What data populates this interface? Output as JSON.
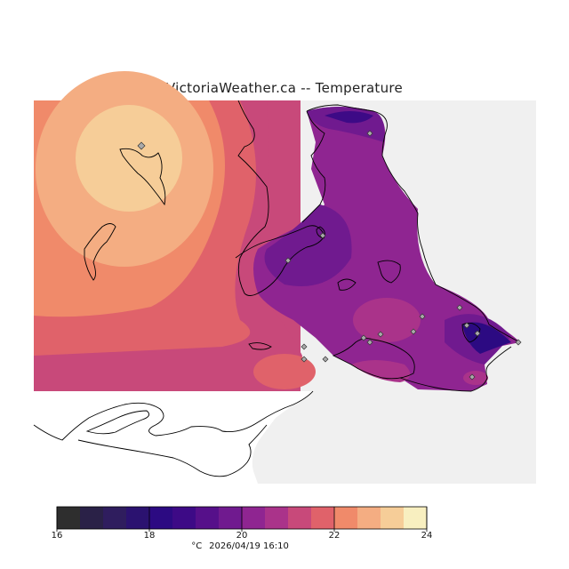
{
  "title": "VictoriaWeather.ca  --  Temperature",
  "footer": {
    "unit": "°C",
    "timestamp": "2026/04/19 16:10"
  },
  "colorbar": {
    "min": 16,
    "max": 24,
    "tick_labels": [
      "16",
      "18",
      "20",
      "22",
      "24"
    ],
    "colors": [
      "#2e2e2e",
      "#2a2147",
      "#2f1d5e",
      "#2b1270",
      "#2c0a82",
      "#3d0a86",
      "#56108a",
      "#701a8f",
      "#8f2591",
      "#aa338a",
      "#c8497a",
      "#e0626a",
      "#f08a6a",
      "#f4ad82",
      "#f6cd98",
      "#f8efc0"
    ]
  },
  "map_colors": {
    "no_data": "#f0f0f0",
    "background_land": "#ffffff",
    "coast": "#000000",
    "station": "#aaaaaa"
  }
}
